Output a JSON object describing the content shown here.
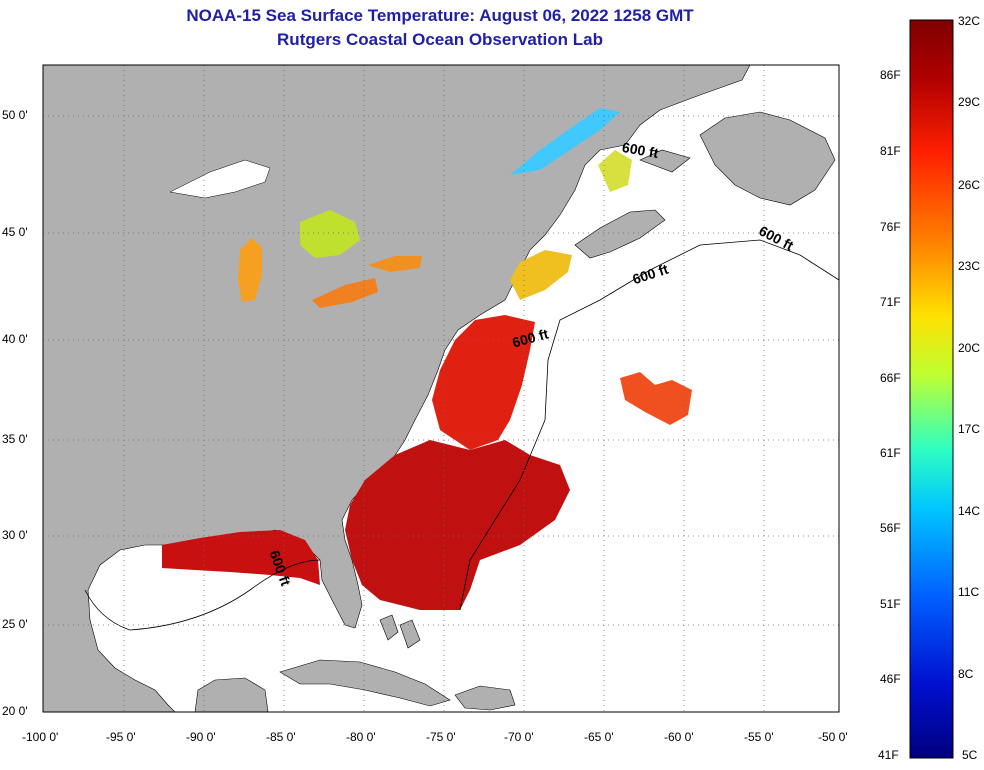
{
  "title": {
    "line1": "NOAA-15 Sea Surface Temperature:  August 06, 2022 1258 GMT",
    "line2": "Rutgers Coastal Ocean Observation Lab"
  },
  "axes": {
    "lon_labels": [
      "-100 0'",
      "-95 0'",
      "-90 0'",
      "-85 0'",
      "-80 0'",
      "-75 0'",
      "-70 0'",
      "-65 0'",
      "-60 0'",
      "-55 0'",
      "-50 0'"
    ],
    "lat_labels": [
      "50 0'",
      "45 0'",
      "40 0'",
      "35 0'",
      "30 0'",
      "25 0'",
      "20 0'"
    ],
    "lon_range": [
      -100,
      -50
    ],
    "lat_range": [
      20,
      52
    ]
  },
  "contour_labels": [
    "600 ft",
    "600 ft",
    "600 ft",
    "600 ft",
    "600 ft"
  ],
  "colorbar": {
    "celsius": [
      "32C",
      "29C",
      "26C",
      "23C",
      "20C",
      "17C",
      "14C",
      "11C",
      "8C",
      "5C"
    ],
    "fahrenheit": [
      "86F",
      "81F",
      "76F",
      "71F",
      "66F",
      "61F",
      "56F",
      "51F",
      "46F",
      "41F"
    ],
    "range_c": [
      5,
      32
    ],
    "colors": [
      "#7f0000",
      "#c00000",
      "#ff2a00",
      "#ff8000",
      "#ffd000",
      "#c8ff30",
      "#40ffb0",
      "#00d0ff",
      "#0070ff",
      "#0010c0",
      "#00007f"
    ]
  },
  "colors": {
    "land": "#b0b0b0",
    "ocean_no_data": "#ffffff",
    "warm": "#c81010",
    "hot": "#a00a0a",
    "mild": "#ff7010",
    "cool": "#f0d020",
    "title": "#1f1fa8"
  }
}
